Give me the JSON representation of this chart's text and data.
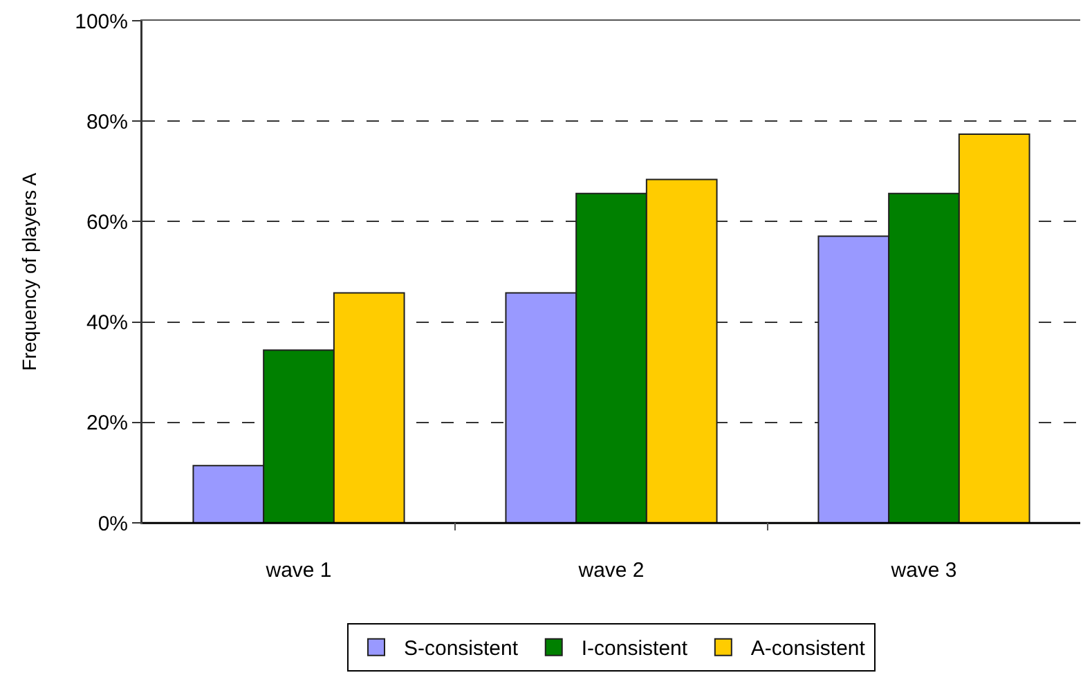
{
  "chart_data": {
    "type": "bar",
    "ylabel": "Frequency of players A",
    "categories": [
      "wave 1",
      "wave 2",
      "wave 3"
    ],
    "series": [
      {
        "name": "S-consistent",
        "color": "#9999ff",
        "values": [
          11.4,
          45.8,
          57.1
        ]
      },
      {
        "name": "I-consistent",
        "color": "#008000",
        "values": [
          34.4,
          65.6,
          65.6
        ]
      },
      {
        "name": "A-consistent",
        "color": "#ffcc00",
        "values": [
          45.8,
          68.4,
          77.4
        ]
      }
    ],
    "ylim": [
      0,
      100
    ],
    "yticks": [
      {
        "value": 0,
        "label": "0%"
      },
      {
        "value": 20,
        "label": "20%"
      },
      {
        "value": 40,
        "label": "40%"
      },
      {
        "value": 60,
        "label": "60%"
      },
      {
        "value": 80,
        "label": "80%"
      },
      {
        "value": 100,
        "label": "100%"
      }
    ],
    "grid": "y",
    "legend": "bottom"
  }
}
